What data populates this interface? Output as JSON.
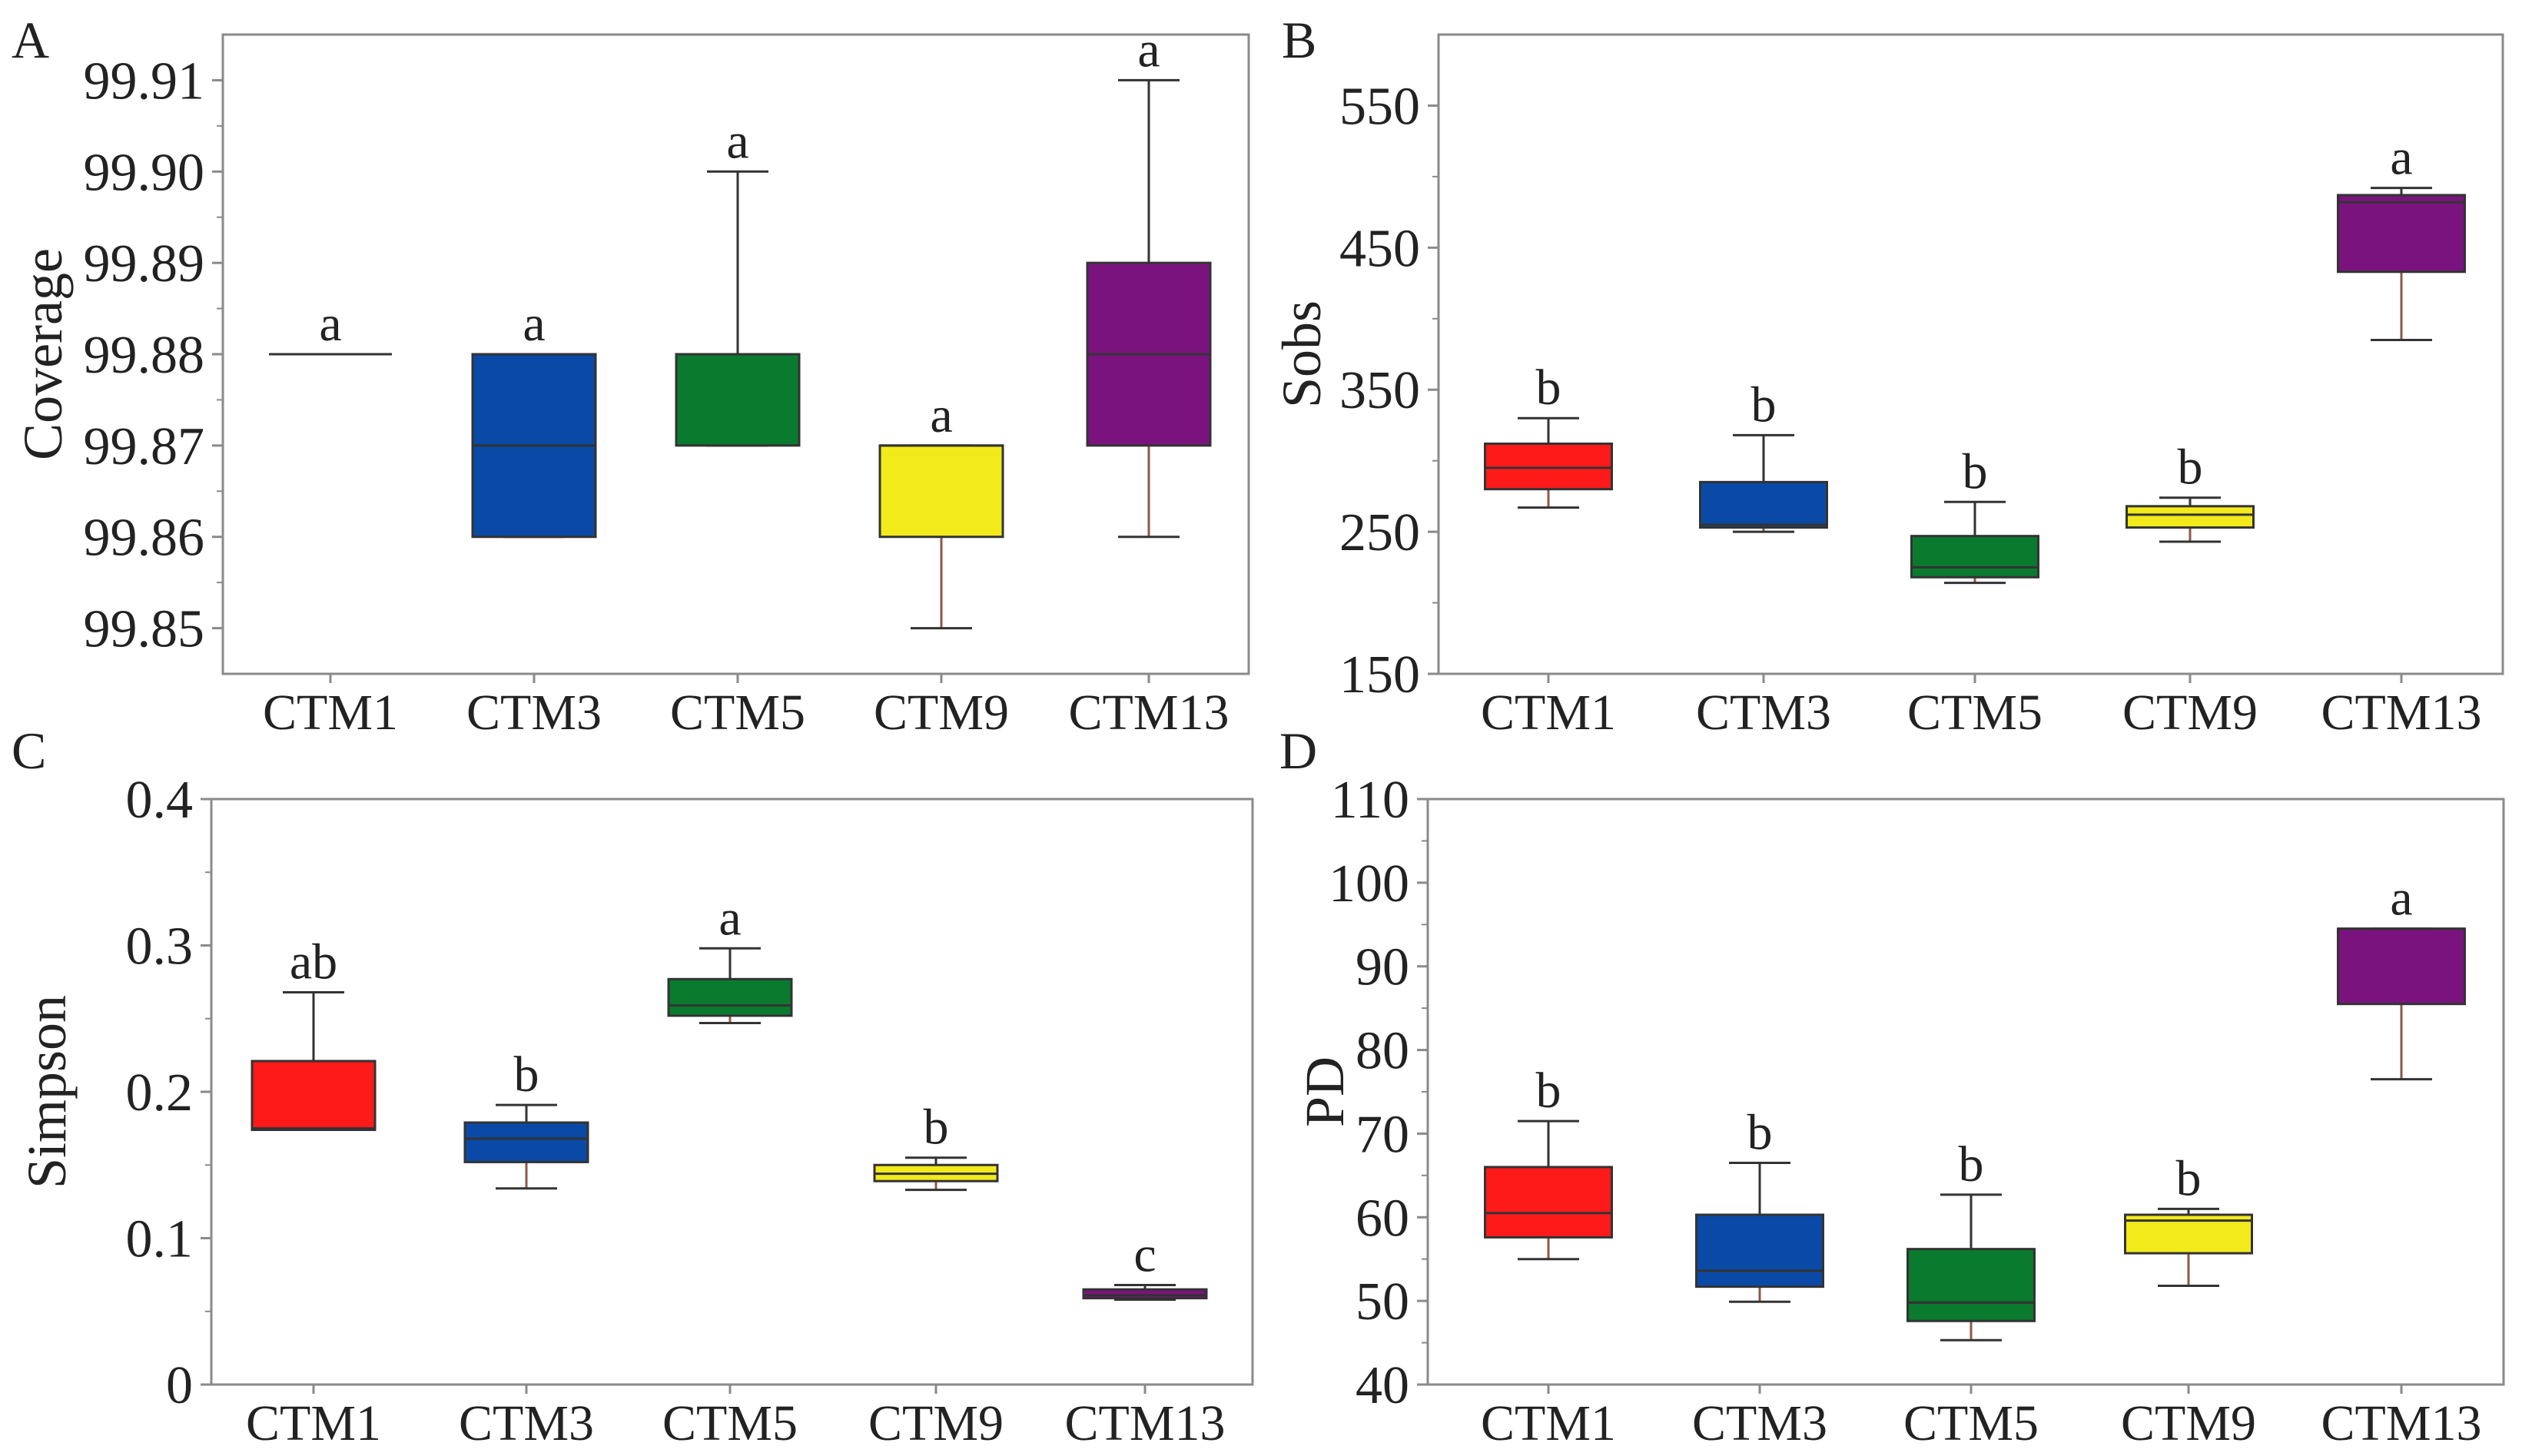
{
  "chart_data": [
    {
      "panel_letter": "A",
      "type": "box",
      "ylabel": "Coverage",
      "ylim": [
        99.845,
        99.915
      ],
      "yticks": [
        99.85,
        99.86,
        99.87,
        99.88,
        99.89,
        99.9,
        99.91
      ],
      "ytick_labels": [
        "99.85",
        "99.86",
        "99.87",
        "99.88",
        "99.89",
        "99.90",
        "99.91"
      ],
      "categories": [
        "CTM1",
        "CTM3",
        "CTM5",
        "CTM9",
        "CTM13"
      ],
      "boxes": [
        {
          "min": 99.88,
          "q1": 99.88,
          "median": 99.88,
          "q3": 99.88,
          "max": 99.88,
          "letter": "a",
          "color": "#d3d3d3"
        },
        {
          "min": 99.86,
          "q1": 99.86,
          "median": 99.87,
          "q3": 99.88,
          "max": 99.88,
          "letter": "a",
          "color": "#0a4aa6"
        },
        {
          "min": 99.87,
          "q1": 99.87,
          "median": 99.88,
          "q3": 99.88,
          "max": 99.9,
          "letter": "a",
          "color": "#0a7a2e"
        },
        {
          "min": 99.85,
          "q1": 99.86,
          "median": 99.87,
          "q3": 99.87,
          "max": 99.87,
          "letter": "a",
          "color": "#f2ea1b"
        },
        {
          "min": 99.86,
          "q1": 99.87,
          "median": 99.88,
          "q3": 99.89,
          "max": 99.91,
          "letter": "a",
          "color": "#7b137f"
        }
      ]
    },
    {
      "panel_letter": "B",
      "type": "box",
      "ylabel": "Sobs",
      "ylim": [
        150,
        600
      ],
      "yticks": [
        150,
        250,
        350,
        450,
        550
      ],
      "ytick_labels": [
        "150",
        "250",
        "350",
        "450",
        "550"
      ],
      "categories": [
        "CTM1",
        "CTM3",
        "CTM5",
        "CTM9",
        "CTM13"
      ],
      "boxes": [
        {
          "min": 267,
          "q1": 280,
          "median": 295,
          "q3": 312,
          "max": 330,
          "letter": "b",
          "color": "#ff1a1a"
        },
        {
          "min": 250,
          "q1": 253,
          "median": 255,
          "q3": 285,
          "max": 318,
          "letter": "b",
          "color": "#0a4aa6"
        },
        {
          "min": 214,
          "q1": 218,
          "median": 225,
          "q3": 247,
          "max": 271,
          "letter": "b",
          "color": "#0a7a2e"
        },
        {
          "min": 243,
          "q1": 253,
          "median": 262,
          "q3": 268,
          "max": 274,
          "letter": "b",
          "color": "#f2ea1b"
        },
        {
          "min": 385,
          "q1": 433,
          "median": 482,
          "q3": 487,
          "max": 492,
          "letter": "a",
          "color": "#7b137f"
        }
      ]
    },
    {
      "panel_letter": "C",
      "type": "box",
      "ylabel": "Simpson",
      "ylim": [
        0,
        0.4
      ],
      "yticks": [
        0,
        0.1,
        0.2,
        0.3,
        0.4
      ],
      "ytick_labels": [
        "0",
        "0.1",
        "0.2",
        "0.3",
        "0.4"
      ],
      "categories": [
        "CTM1",
        "CTM3",
        "CTM5",
        "CTM9",
        "CTM13"
      ],
      "boxes": [
        {
          "min": 0.174,
          "q1": 0.174,
          "median": 0.175,
          "q3": 0.221,
          "max": 0.268,
          "letter": "ab",
          "color": "#ff1a1a"
        },
        {
          "min": 0.134,
          "q1": 0.152,
          "median": 0.168,
          "q3": 0.179,
          "max": 0.191,
          "letter": "b",
          "color": "#0a4aa6"
        },
        {
          "min": 0.247,
          "q1": 0.252,
          "median": 0.259,
          "q3": 0.277,
          "max": 0.298,
          "letter": "a",
          "color": "#0a7a2e"
        },
        {
          "min": 0.133,
          "q1": 0.139,
          "median": 0.144,
          "q3": 0.15,
          "max": 0.155,
          "letter": "b",
          "color": "#f2ea1b"
        },
        {
          "min": 0.058,
          "q1": 0.059,
          "median": 0.061,
          "q3": 0.065,
          "max": 0.068,
          "letter": "c",
          "color": "#7b137f"
        }
      ]
    },
    {
      "panel_letter": "D",
      "type": "box",
      "ylabel": "PD",
      "ylim": [
        40,
        110
      ],
      "yticks": [
        40,
        50,
        60,
        70,
        80,
        90,
        100,
        110
      ],
      "ytick_labels": [
        "40",
        "50",
        "60",
        "70",
        "80",
        "90",
        "100",
        "110"
      ],
      "categories": [
        "CTM1",
        "CTM3",
        "CTM5",
        "CTM9",
        "CTM13"
      ],
      "boxes": [
        {
          "min": 55.0,
          "q1": 57.6,
          "median": 60.5,
          "q3": 66.0,
          "max": 71.5,
          "letter": "b",
          "color": "#ff1a1a"
        },
        {
          "min": 49.9,
          "q1": 51.7,
          "median": 53.6,
          "q3": 60.3,
          "max": 66.5,
          "letter": "b",
          "color": "#0a4aa6"
        },
        {
          "min": 45.3,
          "q1": 47.6,
          "median": 49.8,
          "q3": 56.2,
          "max": 62.7,
          "letter": "b",
          "color": "#0a7a2e"
        },
        {
          "min": 51.8,
          "q1": 55.7,
          "median": 59.6,
          "q3": 60.3,
          "max": 61.0,
          "letter": "b",
          "color": "#f2ea1b"
        },
        {
          "min": 76.5,
          "q1": 85.5,
          "median": 94.5,
          "q3": 94.5,
          "max": 94.5,
          "letter": "a",
          "color": "#7b137f"
        }
      ]
    }
  ]
}
